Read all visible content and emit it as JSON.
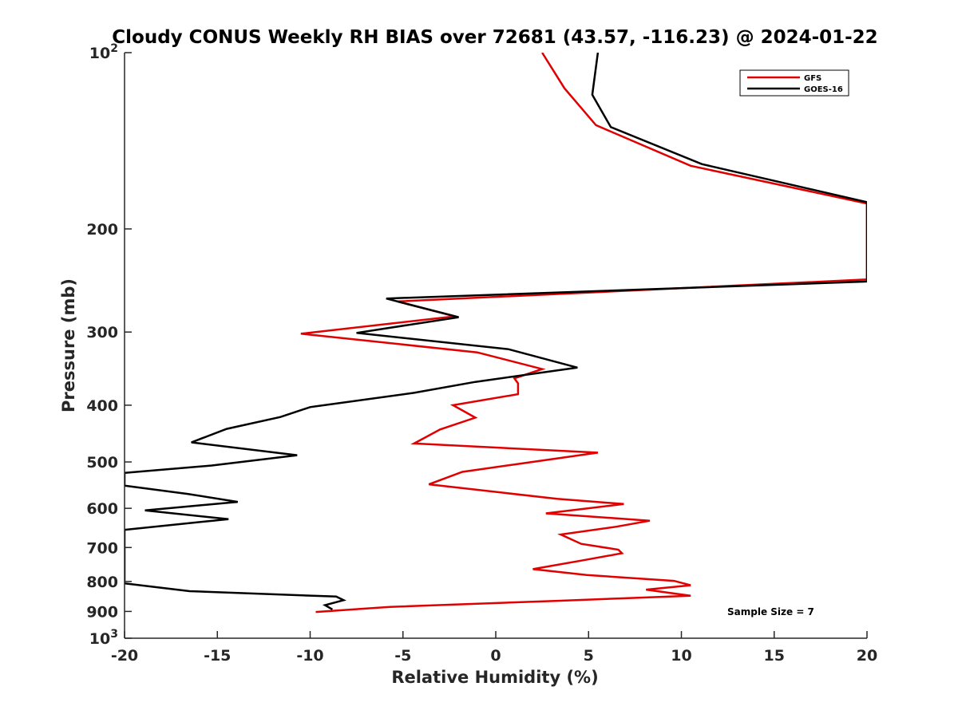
{
  "chart_data": {
    "type": "line",
    "title": "Cloudy CONUS Weekly RH BIAS over 72681 (43.57, -116.23) @ 2024-01-22",
    "xlabel": "Relative Humidity (%)",
    "ylabel": "Pressure (mb)",
    "xlim": [
      -20,
      20
    ],
    "ylim": [
      100,
      1000
    ],
    "y_scale": "log",
    "y_reversed": true,
    "grid": false,
    "legend_position": "top-right",
    "x_ticks": [
      -20,
      -15,
      -10,
      -5,
      0,
      5,
      10,
      15,
      20
    ],
    "y_ticks": [
      {
        "value": 100,
        "base": "10",
        "exp": "2"
      },
      {
        "value": 200,
        "label": "200"
      },
      {
        "value": 300,
        "label": "300"
      },
      {
        "value": 400,
        "label": "400"
      },
      {
        "value": 500,
        "label": "500"
      },
      {
        "value": 600,
        "label": "600"
      },
      {
        "value": 700,
        "label": "700"
      },
      {
        "value": 800,
        "label": "800"
      },
      {
        "value": 900,
        "label": "900"
      },
      {
        "value": 1000,
        "base": "10",
        "exp": "3"
      }
    ],
    "annotation": "Sample Size = 7",
    "series": [
      {
        "name": "GFS",
        "color": "#e00000",
        "points": [
          [
            2.5,
            100
          ],
          [
            3.7,
            115
          ],
          [
            5.4,
            133
          ],
          [
            10.5,
            156
          ],
          [
            20.0,
            181
          ],
          [
            20.0,
            244
          ],
          [
            -5.3,
            266
          ],
          [
            -2.2,
            282
          ],
          [
            -10.5,
            302
          ],
          [
            -1.0,
            325
          ],
          [
            2.5,
            347
          ],
          [
            1.0,
            360
          ],
          [
            1.2,
            367
          ],
          [
            1.2,
            383
          ],
          [
            -2.3,
            400
          ],
          [
            -1.1,
            420
          ],
          [
            -3.0,
            440
          ],
          [
            -4.4,
            465
          ],
          [
            5.5,
            482
          ],
          [
            1.0,
            505
          ],
          [
            -1.8,
            520
          ],
          [
            -3.6,
            546
          ],
          [
            3.3,
            578
          ],
          [
            6.9,
            590
          ],
          [
            2.7,
            612
          ],
          [
            8.3,
            630
          ],
          [
            6.5,
            645
          ],
          [
            3.5,
            665
          ],
          [
            4.6,
            690
          ],
          [
            6.6,
            706
          ],
          [
            6.8,
            716
          ],
          [
            4.7,
            736
          ],
          [
            2.0,
            762
          ],
          [
            4.9,
            780
          ],
          [
            9.6,
            798
          ],
          [
            10.5,
            812
          ],
          [
            8.1,
            826
          ],
          [
            10.5,
            846
          ],
          [
            6.7,
            855
          ],
          [
            3.5,
            863
          ],
          [
            -5.7,
            884
          ],
          [
            -9.7,
            902
          ]
        ]
      },
      {
        "name": "GOES-16",
        "color": "#000000",
        "points": [
          [
            5.5,
            100
          ],
          [
            5.2,
            118
          ],
          [
            6.2,
            134
          ],
          [
            11.1,
            155
          ],
          [
            20.0,
            180
          ],
          [
            20.0,
            246
          ],
          [
            -5.9,
            263
          ],
          [
            -2.0,
            283
          ],
          [
            -7.5,
            301
          ],
          [
            0.7,
            321
          ],
          [
            4.4,
            345
          ],
          [
            -1.1,
            365
          ],
          [
            -4.4,
            381
          ],
          [
            -10.0,
            403
          ],
          [
            -11.6,
            419
          ],
          [
            -14.5,
            439
          ],
          [
            -16.4,
            463
          ],
          [
            -10.7,
            487
          ],
          [
            -15.3,
            507
          ],
          [
            -20.0,
            522
          ],
          [
            -20.0,
            549
          ],
          [
            -16.6,
            567
          ],
          [
            -13.9,
            585
          ],
          [
            -18.9,
            605
          ],
          [
            -14.4,
            626
          ],
          [
            -20.0,
            653
          ],
          [
            -20.0,
            806
          ],
          [
            -16.5,
            831
          ],
          [
            -8.6,
            849
          ],
          [
            -8.2,
            861
          ],
          [
            -9.2,
            878
          ],
          [
            -8.8,
            893
          ]
        ]
      }
    ]
  }
}
